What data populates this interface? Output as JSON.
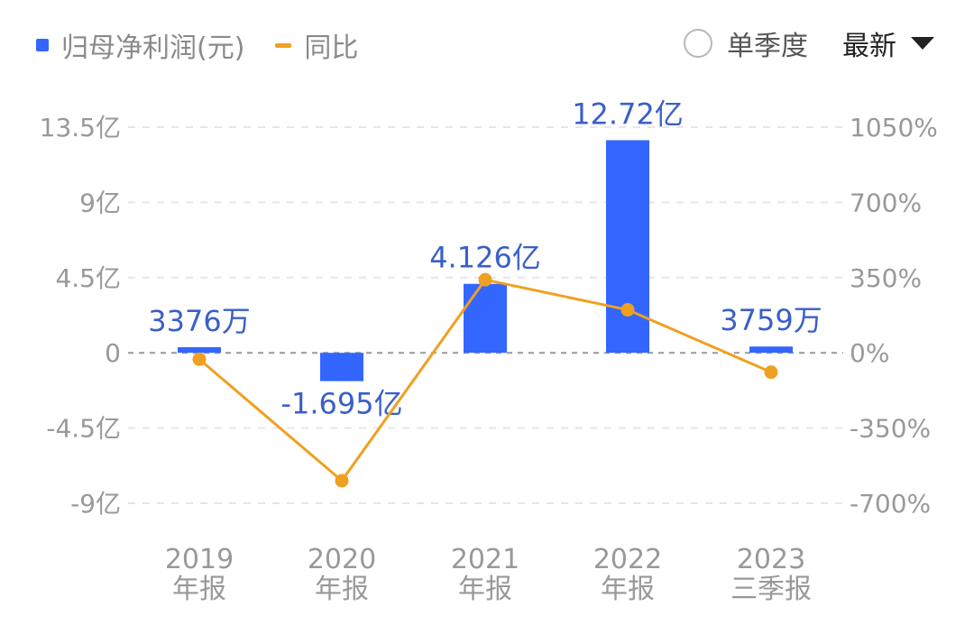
{
  "legend": {
    "bar_label": "归母净利润(元)",
    "line_label": "同比"
  },
  "controls": {
    "quarter_label": "单季度",
    "latest_label": "最新"
  },
  "colors": {
    "bar": "#3366ff",
    "line": "#f0a020",
    "grid": "#e6e6e6",
    "zero_line": "#999999"
  },
  "chart_data": {
    "type": "bar",
    "categories": [
      [
        "2019",
        "年报"
      ],
      [
        "2020",
        "年报"
      ],
      [
        "2021",
        "年报"
      ],
      [
        "2022",
        "年报"
      ],
      [
        "2023",
        "三季报"
      ]
    ],
    "series": [
      {
        "name": "归母净利润(元)",
        "type": "bar",
        "axis": "left",
        "values": [
          0.3376,
          -1.695,
          4.126,
          12.72,
          0.3759
        ],
        "labels": [
          "3376万",
          "-1.695亿",
          "4.126亿",
          "12.72亿",
          "3759万"
        ]
      },
      {
        "name": "同比",
        "type": "line",
        "axis": "right",
        "values": [
          -30,
          -595,
          340,
          200,
          -90
        ]
      }
    ],
    "y_left": {
      "ticks": [
        13.5,
        9,
        4.5,
        0,
        -4.5,
        -9
      ],
      "tick_labels": [
        "13.5亿",
        "9亿",
        "4.5亿",
        "0",
        "-4.5亿",
        "-9亿"
      ],
      "ylim": [
        -9,
        13.5
      ]
    },
    "y_right": {
      "ticks": [
        1050,
        700,
        350,
        0,
        -350,
        -700
      ],
      "tick_labels": [
        "1050%",
        "700%",
        "350%",
        "0%",
        "-350%",
        "-700%"
      ],
      "ylim": [
        -700,
        1050
      ]
    },
    "grid": true
  }
}
